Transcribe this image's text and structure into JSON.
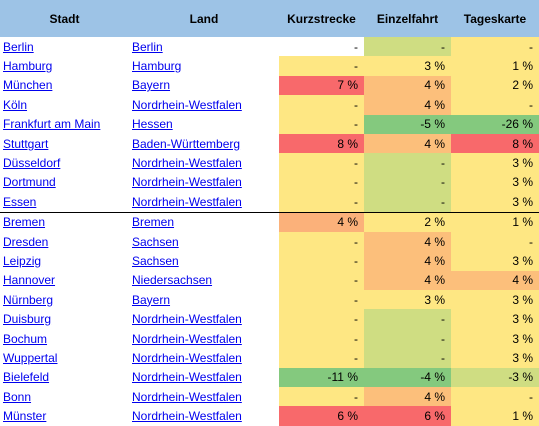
{
  "headers": [
    "Stadt",
    "Land",
    "Kurzstrecke",
    "Einzelfahrt",
    "Tageskarte"
  ],
  "colors": {
    "header_bg": "#9dc3e6",
    "strong_red": "#f8696b",
    "light_red": "#fbb17a",
    "orange": "#fcbf7b",
    "yellow": "#fee783",
    "light_green": "#cfdd82",
    "green": "#84c97e",
    "white": "#ffffff"
  },
  "rows": [
    {
      "stadt": "Berlin",
      "land": "Berlin",
      "kurz": "-",
      "einzel": "-",
      "tages": "-",
      "kc": "white",
      "ec": "light_green",
      "tc": "yellow"
    },
    {
      "stadt": "Hamburg",
      "land": "Hamburg",
      "kurz": "-",
      "einzel": "3 %",
      "tages": "1 %",
      "kc": "yellow",
      "ec": "yellow",
      "tc": "yellow"
    },
    {
      "stadt": "München",
      "land": "Bayern",
      "kurz": "7 %",
      "einzel": "4 %",
      "tages": "2 %",
      "kc": "strong_red",
      "ec": "orange",
      "tc": "yellow"
    },
    {
      "stadt": "Köln",
      "land": "Nordrhein-Westfalen",
      "kurz": "-",
      "einzel": "4 %",
      "tages": "-",
      "kc": "yellow",
      "ec": "orange",
      "tc": "yellow"
    },
    {
      "stadt": "Frankfurt am Main",
      "land": "Hessen",
      "kurz": "-",
      "einzel": "-5 %",
      "tages": "-26 %",
      "kc": "yellow",
      "ec": "green",
      "tc": "green"
    },
    {
      "stadt": "Stuttgart",
      "land": "Baden-Württemberg",
      "kurz": "8 %",
      "einzel": "4 %",
      "tages": "8 %",
      "kc": "strong_red",
      "ec": "orange",
      "tc": "strong_red"
    },
    {
      "stadt": "Düsseldorf",
      "land": "Nordrhein-Westfalen",
      "kurz": "-",
      "einzel": "-",
      "tages": "3 %",
      "kc": "yellow",
      "ec": "light_green",
      "tc": "yellow"
    },
    {
      "stadt": "Dortmund",
      "land": "Nordrhein-Westfalen",
      "kurz": "-",
      "einzel": "-",
      "tages": "3 %",
      "kc": "yellow",
      "ec": "light_green",
      "tc": "yellow"
    },
    {
      "stadt": "Essen",
      "land": "Nordrhein-Westfalen",
      "kurz": "-",
      "einzel": "-",
      "tages": "3 %",
      "kc": "yellow",
      "ec": "light_green",
      "tc": "yellow",
      "sep": true
    },
    {
      "stadt": "Bremen",
      "land": "Bremen",
      "kurz": "4 %",
      "einzel": "2 %",
      "tages": "1 %",
      "kc": "light_red",
      "ec": "yellow",
      "tc": "yellow"
    },
    {
      "stadt": "Dresden",
      "land": "Sachsen",
      "kurz": "-",
      "einzel": "4 %",
      "tages": "-",
      "kc": "yellow",
      "ec": "orange",
      "tc": "yellow"
    },
    {
      "stadt": "Leipzig",
      "land": "Sachsen",
      "kurz": "-",
      "einzel": "4 %",
      "tages": "3 %",
      "kc": "yellow",
      "ec": "orange",
      "tc": "yellow"
    },
    {
      "stadt": "Hannover",
      "land": "Niedersachsen",
      "kurz": "-",
      "einzel": "4 %",
      "tages": "4 %",
      "kc": "yellow",
      "ec": "orange",
      "tc": "orange"
    },
    {
      "stadt": "Nürnberg",
      "land": "Bayern",
      "kurz": "-",
      "einzel": "3 %",
      "tages": "3 %",
      "kc": "yellow",
      "ec": "yellow",
      "tc": "yellow"
    },
    {
      "stadt": "Duisburg",
      "land": "Nordrhein-Westfalen",
      "kurz": "-",
      "einzel": "-",
      "tages": "3 %",
      "kc": "yellow",
      "ec": "light_green",
      "tc": "yellow"
    },
    {
      "stadt": "Bochum",
      "land": "Nordrhein-Westfalen",
      "kurz": "-",
      "einzel": "-",
      "tages": "3 %",
      "kc": "yellow",
      "ec": "light_green",
      "tc": "yellow"
    },
    {
      "stadt": "Wuppertal",
      "land": "Nordrhein-Westfalen",
      "kurz": "-",
      "einzel": "-",
      "tages": "3 %",
      "kc": "yellow",
      "ec": "light_green",
      "tc": "yellow"
    },
    {
      "stadt": "Bielefeld",
      "land": "Nordrhein-Westfalen",
      "kurz": "-11 %",
      "einzel": "-4 %",
      "tages": "-3 %",
      "kc": "green",
      "ec": "green",
      "tc": "light_green"
    },
    {
      "stadt": "Bonn",
      "land": "Nordrhein-Westfalen",
      "kurz": "-",
      "einzel": "4 %",
      "tages": "-",
      "kc": "yellow",
      "ec": "orange",
      "tc": "yellow"
    },
    {
      "stadt": "Münster",
      "land": "Nordrhein-Westfalen",
      "kurz": "6 %",
      "einzel": "6 %",
      "tages": "1 %",
      "kc": "strong_red",
      "ec": "strong_red",
      "tc": "yellow"
    }
  ]
}
